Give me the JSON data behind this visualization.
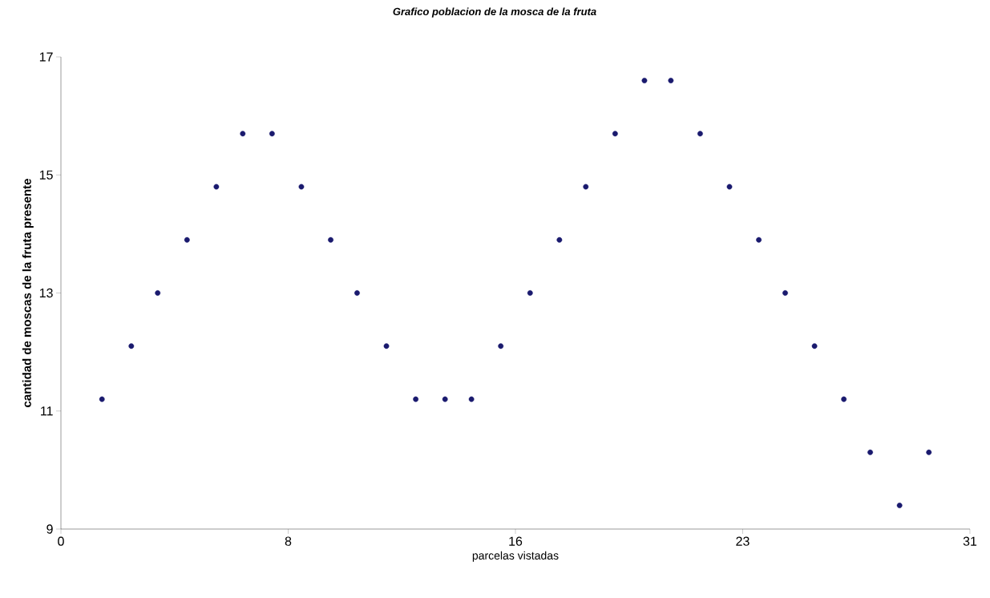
{
  "chart_data": {
    "type": "scatter",
    "title": "Grafico poblacion de la mosca de la fruta",
    "xlabel": "parcelas vistadas",
    "ylabel": "cantidad de moscas de la fruta presente",
    "x": [
      1.4,
      2.4,
      3.3,
      4.3,
      5.3,
      6.2,
      7.2,
      8.2,
      9.2,
      10.1,
      11.1,
      12.1,
      13.1,
      14.0,
      15.0,
      16.0,
      17.0,
      17.9,
      18.9,
      19.9,
      20.8,
      21.8,
      22.8,
      23.8,
      24.7,
      25.7,
      26.7,
      27.6,
      28.6,
      29.6
    ],
    "values": [
      11.2,
      12.1,
      13.0,
      13.9,
      14.8,
      15.7,
      15.7,
      14.8,
      13.9,
      13.0,
      12.1,
      11.2,
      11.2,
      11.2,
      12.1,
      13.0,
      13.9,
      14.8,
      15.7,
      16.6,
      16.6,
      15.7,
      14.8,
      13.9,
      13.0,
      12.1,
      11.2,
      10.3,
      9.4,
      10.3
    ],
    "color": "#1a1a6e",
    "xlim": [
      0,
      31
    ],
    "xticks": [
      0,
      {
        "value": 7.75,
        "label": "8"
      },
      {
        "value": 15.5,
        "label": "16"
      },
      {
        "value": 23.25,
        "label": "23"
      },
      31
    ],
    "ylim": [
      9,
      17
    ],
    "yticks": [
      9,
      11,
      13,
      15,
      17
    ]
  }
}
